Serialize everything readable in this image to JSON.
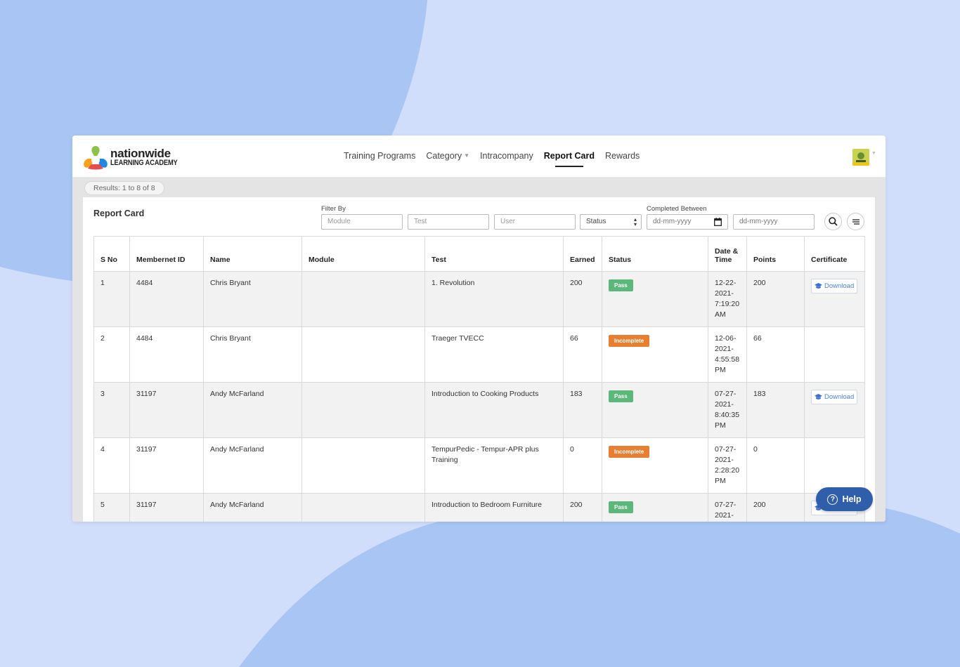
{
  "colors": {
    "background": "#d0ddfb",
    "blob": "#a8c5f3",
    "pass": "#5cb87a",
    "incomplete": "#e87e2f",
    "help": "#2f5fab",
    "download_text": "#4a7ee0"
  },
  "brand": {
    "line1": "nationwide",
    "line2": "LEARNING ACADEMY"
  },
  "nav": {
    "items": [
      {
        "label": "Training Programs"
      },
      {
        "label": "Category"
      },
      {
        "label": "Intracompany"
      },
      {
        "label": "Report Card"
      },
      {
        "label": "Rewards"
      }
    ],
    "active": "Report Card"
  },
  "results": "Results: 1 to 8 of 8",
  "panel": {
    "title": "Report Card",
    "filter_by_label": "Filter By",
    "completed_between_label": "Completed Between",
    "filters": {
      "module_placeholder": "Module",
      "test_placeholder": "Test",
      "user_placeholder": "User",
      "status_value": "Status",
      "date_from_placeholder": "dd-mm-yyyy",
      "date_to_placeholder": "dd-mm-yyyy"
    }
  },
  "table": {
    "headers": [
      "S No",
      "Membernet ID",
      "Name",
      "Module",
      "Test",
      "Earned",
      "Status",
      "Date & Time",
      "Points",
      "Certificate"
    ],
    "rows": [
      {
        "sno": "1",
        "id": "4484",
        "name": "Chris Bryant",
        "module": "",
        "test": "1. Revolution",
        "earned": "200",
        "status": "Pass",
        "datetime": "12-22-2021-7:19:20 AM",
        "points": "200",
        "certificate": "Download"
      },
      {
        "sno": "2",
        "id": "4484",
        "name": "Chris Bryant",
        "module": "",
        "test": "Traeger TVECC",
        "earned": "66",
        "status": "Incomplete",
        "datetime": "12-06-2021-4:55:58 PM",
        "points": "66",
        "certificate": ""
      },
      {
        "sno": "3",
        "id": "31197",
        "name": "Andy McFarland",
        "module": "",
        "test": "Introduction to Cooking Products",
        "earned": "183",
        "status": "Pass",
        "datetime": "07-27-2021-8:40:35 PM",
        "points": "183",
        "certificate": "Download"
      },
      {
        "sno": "4",
        "id": "31197",
        "name": "Andy McFarland",
        "module": "",
        "test": "TempurPedic - Tempur-APR plus Training",
        "earned": "0",
        "status": "Incomplete",
        "datetime": "07-27-2021-2:28:20 PM",
        "points": "0",
        "certificate": ""
      },
      {
        "sno": "5",
        "id": "31197",
        "name": "Andy McFarland",
        "module": "",
        "test": "Introduction to Bedroom Furniture",
        "earned": "200",
        "status": "Pass",
        "datetime": "07-27-2021-",
        "points": "200",
        "certificate": "Download"
      }
    ]
  },
  "help": {
    "label": "Help",
    "icon": "question-circle-icon"
  },
  "icons": {
    "search": "search-icon",
    "sort": "sort-lines-icon",
    "calendar": "calendar-icon",
    "download": "graduation-cap-icon",
    "avatar": "avatar"
  }
}
